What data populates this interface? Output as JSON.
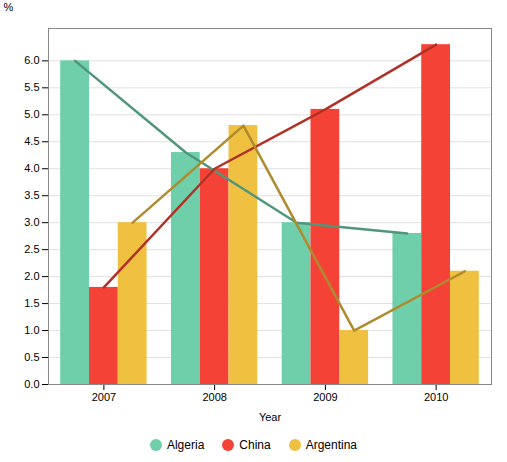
{
  "chart_data": {
    "type": "bar",
    "xlabel": "Year",
    "ylabel": "%",
    "categories": [
      "2007",
      "2008",
      "2009",
      "2010"
    ],
    "series": [
      {
        "name": "Algeria",
        "color": "#6ecfaa",
        "line_style": "solid",
        "values": [
          6.0,
          4.3,
          3.0,
          2.8
        ]
      },
      {
        "name": "China",
        "color": "#f44336",
        "line_style": "solid",
        "values": [
          1.8,
          4.0,
          5.1,
          6.3
        ]
      },
      {
        "name": "Argentina",
        "color": "#f0c040",
        "line_style": "solid",
        "values": [
          3.0,
          4.8,
          1.0,
          2.1
        ]
      }
    ],
    "ylim": [
      0.0,
      6.6
    ],
    "yticks": [
      {
        "value": 0.0,
        "label": "0.0"
      },
      0.5,
      {
        "value": 1.0,
        "label": "1.0"
      },
      1.5,
      {
        "value": 2.0,
        "label": "2.0"
      },
      2.5,
      {
        "value": 3.0,
        "label": "3.0"
      },
      3.5,
      {
        "value": 4.0,
        "label": "4.0"
      },
      4.5,
      {
        "value": 5.0,
        "label": "5.0"
      },
      5.5,
      {
        "value": 6.0,
        "label": "6.0"
      }
    ],
    "grid": true,
    "legend": "bottom"
  }
}
